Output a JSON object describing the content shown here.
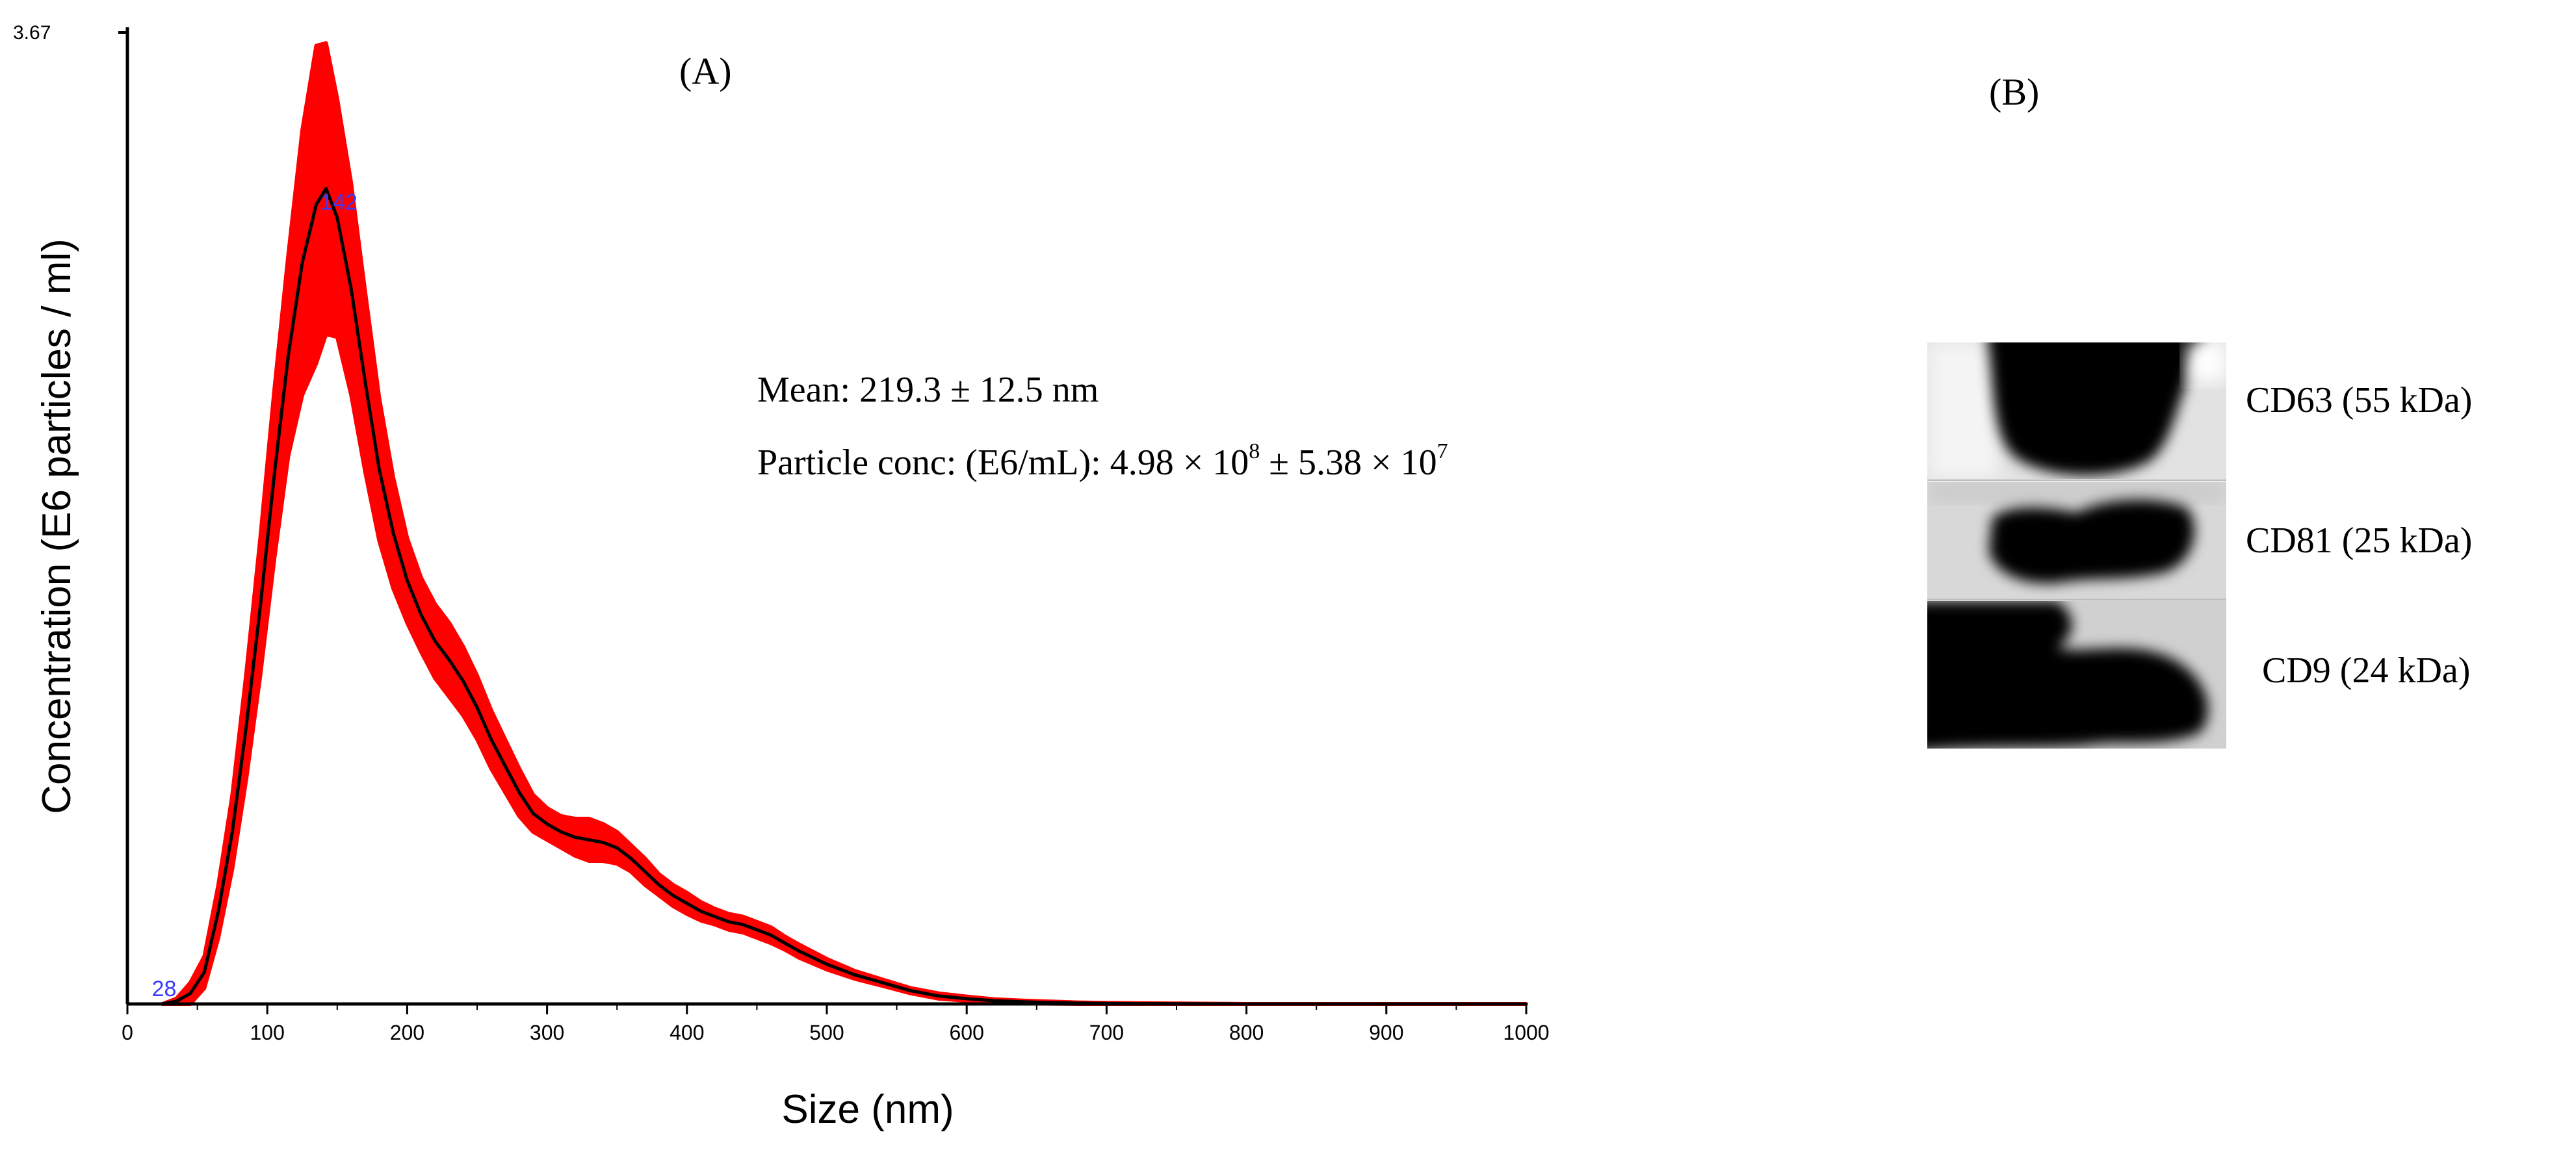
{
  "panels": {
    "a_label": "(A)",
    "b_label": "(B)"
  },
  "stats": {
    "mean_label": "Mean:",
    "mean_value": "219.3 ± 12.5 nm",
    "conc_label": "Particle conc: (E6/mL):",
    "conc_base1": "4.98 × 10",
    "conc_exp1": "8",
    "conc_sep": " ± 5.38 × 10",
    "conc_exp2": "7"
  },
  "chart_data": {
    "type": "line",
    "xlabel": "Size (nm)",
    "ylabel": "Concentration (E6 particles / ml)",
    "xlim": [
      0,
      1000
    ],
    "ylim": [
      0,
      3.67
    ],
    "x_ticks": [
      0,
      100,
      200,
      300,
      400,
      500,
      600,
      700,
      800,
      900,
      1000
    ],
    "y_max_label": "3.67",
    "peak_labels": [
      {
        "x": 142,
        "y": 3.05,
        "text": "142"
      },
      {
        "x": 30,
        "y": 0.02,
        "text": "28"
      }
    ],
    "series": [
      {
        "color": "#000000",
        "band_color": "#ff0000",
        "x": [
          25,
          35,
          45,
          55,
          65,
          75,
          85,
          95,
          105,
          115,
          125,
          135,
          142,
          150,
          160,
          170,
          180,
          190,
          200,
          210,
          220,
          230,
          240,
          250,
          260,
          270,
          280,
          290,
          300,
          310,
          320,
          330,
          340,
          350,
          360,
          370,
          380,
          390,
          400,
          410,
          420,
          430,
          440,
          450,
          460,
          470,
          480,
          500,
          520,
          540,
          560,
          580,
          600,
          620,
          640,
          660,
          680,
          700,
          720,
          760,
          800,
          860,
          1000
        ],
        "y": [
          0,
          0.01,
          0.04,
          0.12,
          0.35,
          0.65,
          1.05,
          1.5,
          2.0,
          2.45,
          2.8,
          3.02,
          3.08,
          2.97,
          2.7,
          2.35,
          2.02,
          1.78,
          1.6,
          1.47,
          1.37,
          1.3,
          1.22,
          1.12,
          1.0,
          0.9,
          0.8,
          0.72,
          0.68,
          0.65,
          0.63,
          0.62,
          0.61,
          0.59,
          0.55,
          0.5,
          0.45,
          0.41,
          0.38,
          0.35,
          0.33,
          0.31,
          0.3,
          0.28,
          0.26,
          0.23,
          0.2,
          0.15,
          0.11,
          0.08,
          0.05,
          0.03,
          0.02,
          0.012,
          0.008,
          0.005,
          0.003,
          0.002,
          0.001,
          0.0005,
          0,
          0,
          0
        ],
        "err": [
          0,
          0.01,
          0.04,
          0.06,
          0.1,
          0.14,
          0.2,
          0.26,
          0.32,
          0.38,
          0.5,
          0.6,
          0.55,
          0.45,
          0.4,
          0.34,
          0.27,
          0.21,
          0.16,
          0.14,
          0.14,
          0.14,
          0.13,
          0.12,
          0.11,
          0.1,
          0.09,
          0.07,
          0.06,
          0.06,
          0.07,
          0.08,
          0.07,
          0.06,
          0.05,
          0.05,
          0.04,
          0.04,
          0.04,
          0.035,
          0.03,
          0.03,
          0.03,
          0.03,
          0.03,
          0.025,
          0.025,
          0.02,
          0.015,
          0.012,
          0.01,
          0.01,
          0.008,
          0.006,
          0.005,
          0.004,
          0.003,
          0.002,
          0.002,
          0.001,
          0,
          0,
          0
        ]
      }
    ]
  },
  "blot": {
    "bands": [
      {
        "label": "CD63 (55 kDa)"
      },
      {
        "label": "CD81 (25 kDa)"
      },
      {
        "label": "CD9 (24 kDa)"
      }
    ]
  }
}
